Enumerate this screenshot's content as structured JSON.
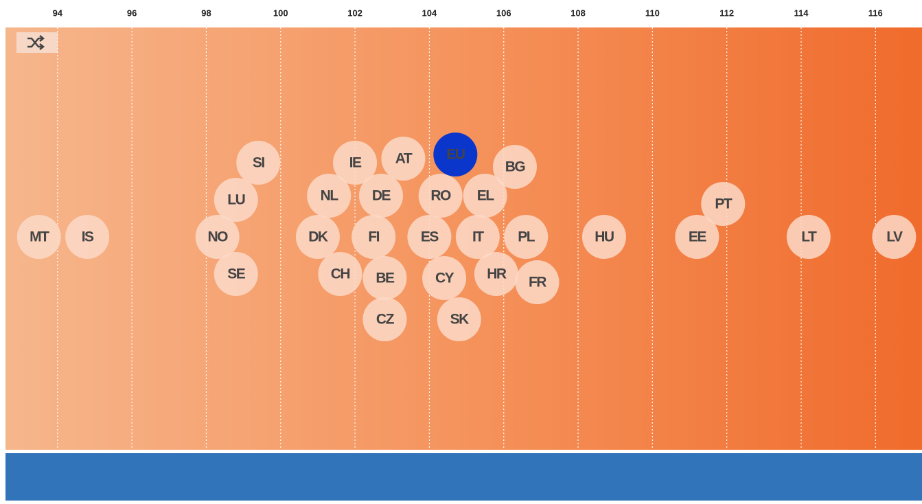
{
  "chart_data": {
    "type": "beeswarm",
    "categories": [
      "MT",
      "IS",
      "LU",
      "SE",
      "NO",
      "SI",
      "DK",
      "NL",
      "CH",
      "IE",
      "FI",
      "BE",
      "DE",
      "CZ",
      "AT",
      "ES",
      "CY",
      "RO",
      "SK",
      "EU",
      "IT",
      "EL",
      "HR",
      "BG",
      "PL",
      "FR",
      "HU",
      "EE",
      "PT",
      "LT",
      "LV"
    ],
    "values": [
      93.5,
      94.8,
      98.8,
      98.8,
      98.3,
      99.4,
      101.0,
      101.3,
      101.6,
      102.0,
      102.5,
      102.8,
      102.7,
      102.8,
      103.3,
      104.0,
      104.4,
      104.3,
      104.8,
      104.7,
      105.3,
      105.5,
      105.8,
      106.3,
      106.6,
      106.9,
      108.7,
      111.2,
      111.9,
      114.2,
      116.5
    ],
    "color": "#fbd9c8",
    "highlight": {
      "category": "EU",
      "color": "#0a36cc"
    },
    "xlim": [
      92.6,
      117.25
    ],
    "xticks": [
      94,
      96,
      98,
      100,
      102,
      104,
      106,
      108,
      110,
      112,
      114,
      116
    ],
    "grid": true
  }
}
